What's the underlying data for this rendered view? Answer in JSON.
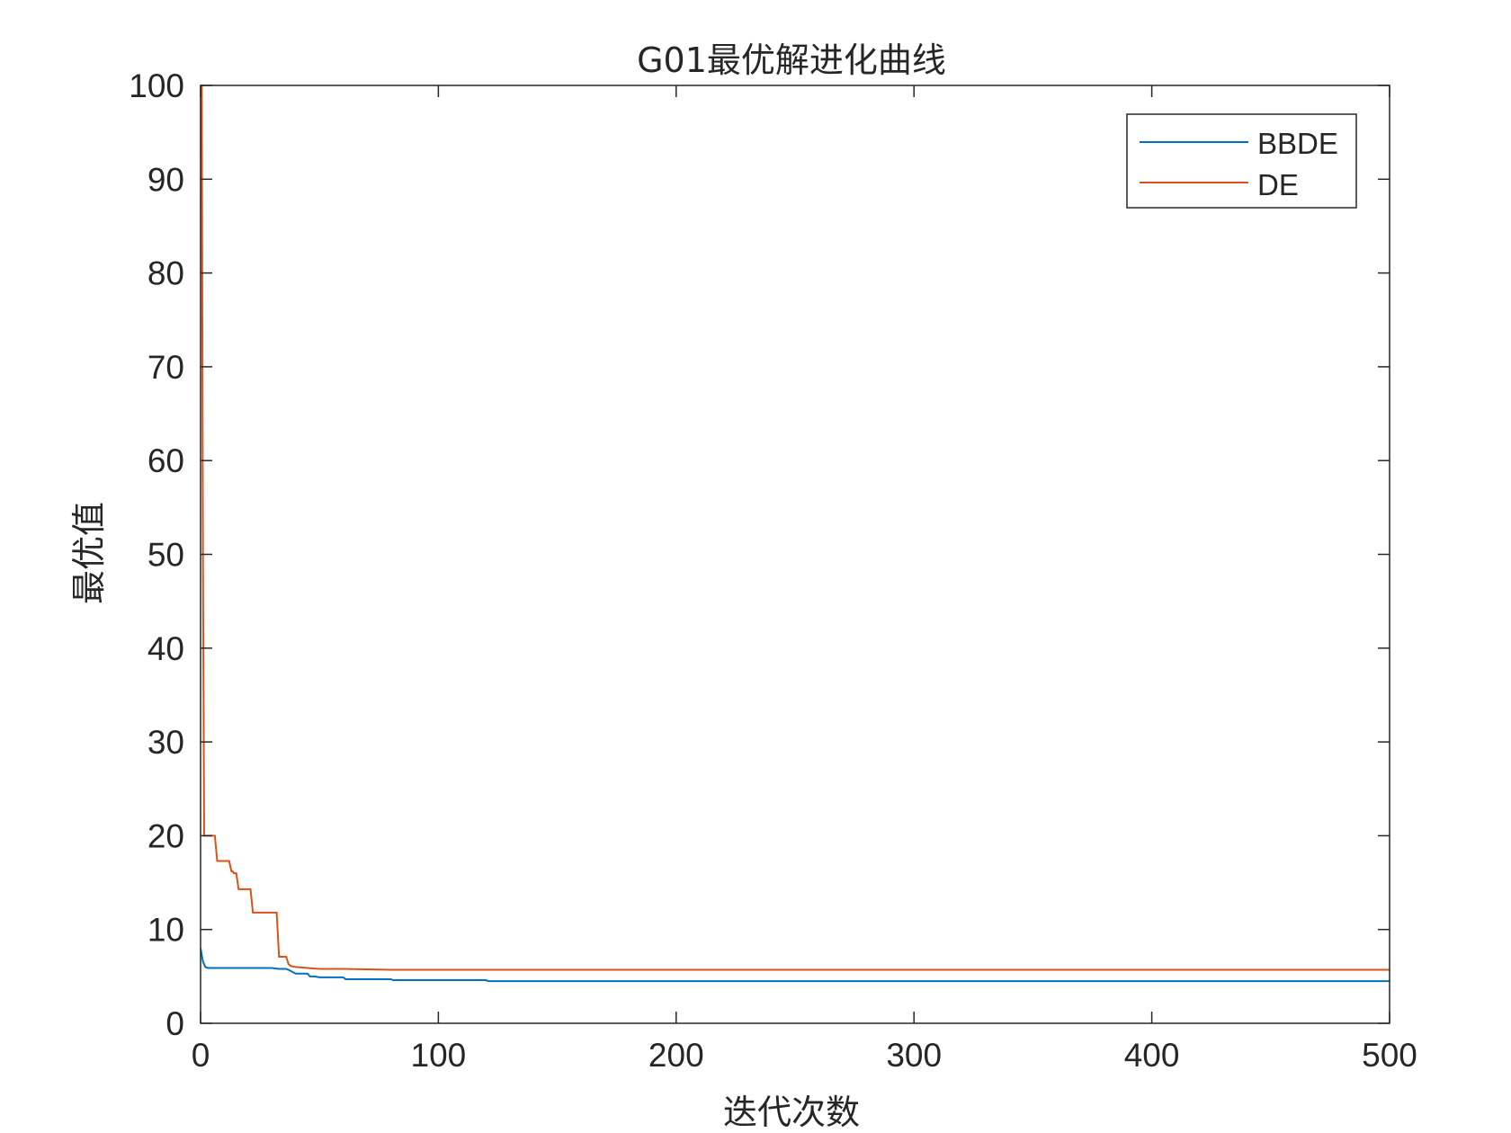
{
  "chart_data": {
    "type": "line",
    "title": "G01最优解进化曲线",
    "xlabel": "迭代次数",
    "ylabel": "最优值",
    "xlim": [
      0,
      500
    ],
    "ylim": [
      0,
      100
    ],
    "x_ticks": [
      0,
      100,
      200,
      300,
      400,
      500
    ],
    "x_tick_labels": [
      "0",
      "100",
      "200",
      "300",
      "400",
      "500"
    ],
    "y_ticks": [
      0,
      10,
      20,
      30,
      40,
      50,
      60,
      70,
      80,
      90,
      100
    ],
    "y_tick_labels": [
      "0",
      "10",
      "20",
      "30",
      "40",
      "50",
      "60",
      "70",
      "80",
      "90",
      "100"
    ],
    "grid": false,
    "legend_position": "top-right",
    "series": [
      {
        "name": "BBDE",
        "color": "#0072BD",
        "x": [
          0,
          1,
          2,
          3,
          10,
          20,
          30,
          33,
          36,
          37,
          40,
          45,
          46,
          48,
          50,
          55,
          60,
          61,
          65,
          70,
          75,
          80,
          81,
          100,
          120,
          121,
          150,
          200,
          300,
          400,
          500
        ],
        "y": [
          8.0,
          6.6,
          6.0,
          5.9,
          5.9,
          5.9,
          5.9,
          5.8,
          5.8,
          5.7,
          5.3,
          5.3,
          5.0,
          5.0,
          4.9,
          4.9,
          4.9,
          4.7,
          4.7,
          4.7,
          4.7,
          4.7,
          4.6,
          4.6,
          4.6,
          4.5,
          4.5,
          4.5,
          4.5,
          4.5,
          4.5
        ]
      },
      {
        "name": "DE",
        "color": "#D95319",
        "x": [
          0,
          0.5,
          1,
          1.5,
          6,
          7,
          12,
          13,
          13.5,
          14,
          15,
          16,
          21,
          22,
          32,
          33,
          36,
          37,
          38,
          40,
          45,
          50,
          55,
          60,
          80,
          100,
          200,
          300,
          400,
          500
        ],
        "y": [
          100,
          100,
          50,
          20.0,
          20.0,
          17.3,
          17.3,
          16.2,
          16.2,
          16.0,
          16.0,
          14.3,
          14.3,
          11.8,
          11.8,
          7.1,
          7.1,
          6.3,
          6.1,
          6.0,
          5.9,
          5.8,
          5.8,
          5.8,
          5.7,
          5.7,
          5.7,
          5.7,
          5.7,
          5.7
        ]
      }
    ]
  }
}
